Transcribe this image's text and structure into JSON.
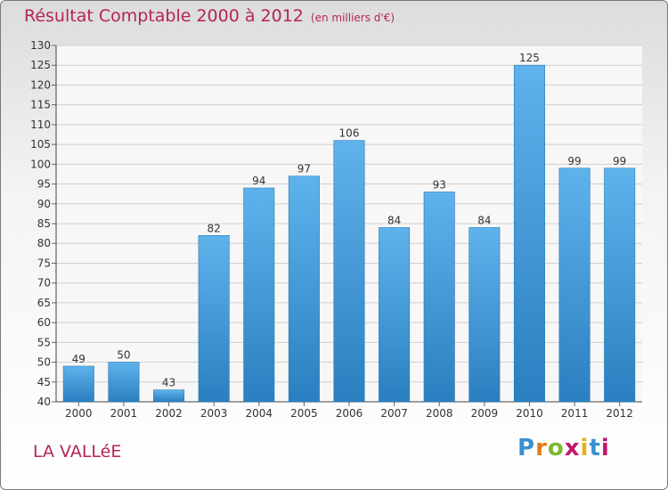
{
  "chart_data": {
    "type": "bar",
    "title": "Résultat Comptable 2000 à 2012",
    "subtitle": "(en milliers d'€)",
    "categories": [
      "2000",
      "2001",
      "2002",
      "2003",
      "2004",
      "2005",
      "2006",
      "2007",
      "2008",
      "2009",
      "2010",
      "2011",
      "2012"
    ],
    "values": [
      49,
      50,
      43,
      82,
      94,
      97,
      106,
      84,
      93,
      84,
      125,
      99,
      99
    ],
    "ylim": [
      40,
      130
    ],
    "yticks": [
      40,
      45,
      50,
      55,
      60,
      65,
      70,
      75,
      80,
      85,
      90,
      95,
      100,
      105,
      110,
      115,
      120,
      125,
      130
    ],
    "xlabel": "",
    "ylabel": "",
    "grid": "horizontal",
    "bar_color": "#3d9fe0"
  },
  "footer": {
    "commune": "LA VALLéE",
    "logo_letters": [
      "P",
      "r",
      "o",
      "x",
      "i",
      "t",
      "i"
    ],
    "logo_colors": [
      "#3a8fd1",
      "#e07b1a",
      "#7ab82e",
      "#c4166d",
      "#e0b11a",
      "#3a8fd1",
      "#c4166d"
    ]
  }
}
